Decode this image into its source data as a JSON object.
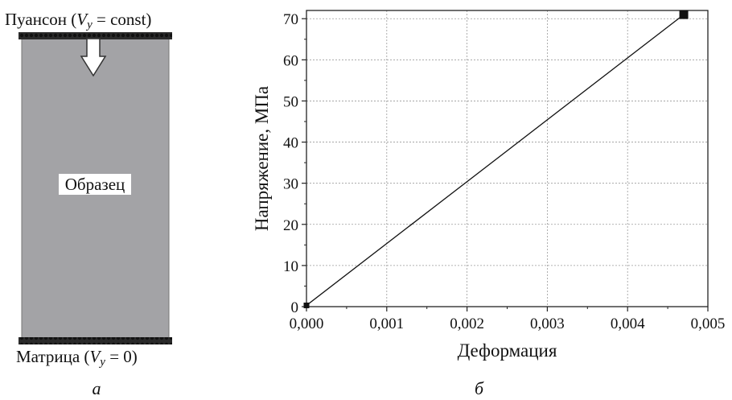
{
  "panel_a": {
    "top_label_prefix": "Пуансон (",
    "top_label_var": "V",
    "top_label_sub": "y",
    "top_label_suffix": " = const)",
    "sample_label": "Образец",
    "bottom_label_prefix": "Матрица (",
    "bottom_label_var": "V",
    "bottom_label_sub": "y",
    "bottom_label_suffix": " = 0)",
    "caption": "а",
    "colors": {
      "sample": "#a3a3a6",
      "plate": "#222222",
      "arrow_fill": "#ffffff"
    }
  },
  "panel_b": {
    "caption": "б"
  },
  "chart_data": {
    "type": "line",
    "xlabel": "Деформация",
    "ylabel": "Напряжение, МПа",
    "xlim": [
      0,
      0.005
    ],
    "ylim": [
      0,
      72
    ],
    "x_ticks": [
      0,
      0.001,
      0.002,
      0.003,
      0.004,
      0.005
    ],
    "x_tick_labels": [
      "0,000",
      "0,001",
      "0,002",
      "0,003",
      "0,004",
      "0,005"
    ],
    "y_ticks": [
      0,
      10,
      20,
      30,
      40,
      50,
      60,
      70
    ],
    "y_tick_labels": [
      "0",
      "10",
      "20",
      "30",
      "40",
      "50",
      "60",
      "70"
    ],
    "grid": true,
    "series": [
      {
        "x": [
          0.0,
          0.0047
        ],
        "y": [
          0.3,
          71.0
        ],
        "marker": "square",
        "color": "#111111"
      }
    ]
  }
}
